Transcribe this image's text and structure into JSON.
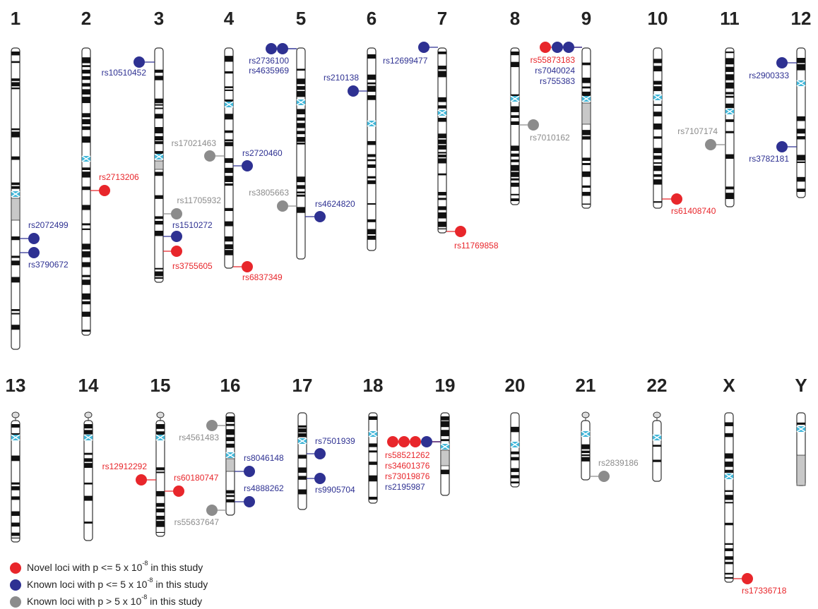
{
  "chromosomes": [
    {
      "label": "1"
    },
    {
      "label": "2"
    },
    {
      "label": "3"
    },
    {
      "label": "4"
    },
    {
      "label": "5"
    },
    {
      "label": "6"
    },
    {
      "label": "7"
    },
    {
      "label": "8"
    },
    {
      "label": "9"
    },
    {
      "label": "10"
    },
    {
      "label": "11"
    },
    {
      "label": "12"
    },
    {
      "label": "13"
    },
    {
      "label": "14"
    },
    {
      "label": "15"
    },
    {
      "label": "16"
    },
    {
      "label": "17"
    },
    {
      "label": "18"
    },
    {
      "label": "19"
    },
    {
      "label": "20"
    },
    {
      "label": "21"
    },
    {
      "label": "22"
    },
    {
      "label": "X"
    },
    {
      "label": "Y"
    }
  ],
  "snps": [
    {
      "id": "rs2072499",
      "color": "#2e3192"
    },
    {
      "id": "rs3790672",
      "color": "#2e3192"
    },
    {
      "id": "rs2713206",
      "color": "#e8262b"
    },
    {
      "id": "rs10510452",
      "color": "#2e3192"
    },
    {
      "id": "rs11705932",
      "color": "#8c8c8c"
    },
    {
      "id": "rs1510272",
      "color": "#2e3192"
    },
    {
      "id": "rs3755605",
      "color": "#e8262b"
    },
    {
      "id": "rs17021463",
      "color": "#8c8c8c"
    },
    {
      "id": "rs2720460",
      "color": "#2e3192"
    },
    {
      "id": "rs6837349",
      "color": "#e8262b"
    },
    {
      "id": "rs2736100",
      "color": "#2e3192"
    },
    {
      "id": "rs4635969",
      "color": "#2e3192"
    },
    {
      "id": "rs3805663",
      "color": "#8c8c8c"
    },
    {
      "id": "rs4624820",
      "color": "#2e3192"
    },
    {
      "id": "rs210138",
      "color": "#2e3192"
    },
    {
      "id": "rs12699477",
      "color": "#2e3192"
    },
    {
      "id": "rs11769858",
      "color": "#e8262b"
    },
    {
      "id": "rs7010162",
      "color": "#8c8c8c"
    },
    {
      "id": "rs55873183",
      "color": "#e8262b"
    },
    {
      "id": "rs7040024",
      "color": "#2e3192"
    },
    {
      "id": "rs755383",
      "color": "#2e3192"
    },
    {
      "id": "rs61408740",
      "color": "#e8262b"
    },
    {
      "id": "rs7107174",
      "color": "#8c8c8c"
    },
    {
      "id": "rs2900333",
      "color": "#2e3192"
    },
    {
      "id": "rs3782181",
      "color": "#2e3192"
    },
    {
      "id": "rs12912292",
      "color": "#e8262b"
    },
    {
      "id": "rs60180747",
      "color": "#e8262b"
    },
    {
      "id": "rs4561483",
      "color": "#8c8c8c"
    },
    {
      "id": "rs8046148",
      "color": "#2e3192"
    },
    {
      "id": "rs4888262",
      "color": "#2e3192"
    },
    {
      "id": "rs55637647",
      "color": "#8c8c8c"
    },
    {
      "id": "rs7501939",
      "color": "#2e3192"
    },
    {
      "id": "rs9905704",
      "color": "#2e3192"
    },
    {
      "id": "rs58521262",
      "color": "#e8262b"
    },
    {
      "id": "rs34601376",
      "color": "#e8262b"
    },
    {
      "id": "rs73019876",
      "color": "#e8262b"
    },
    {
      "id": "rs2195987",
      "color": "#2e3192"
    },
    {
      "id": "rs2839186",
      "color": "#8c8c8c"
    },
    {
      "id": "rs17336718",
      "color": "#e8262b"
    }
  ],
  "legend": [
    {
      "text": "Novel loci with p <= 5 x 10",
      "exponent": "-8",
      "suffix": " in this study",
      "color": "#e8262b"
    },
    {
      "text": "Known loci with p <= 5 x 10",
      "exponent": "-8",
      "suffix": " in this study",
      "color": "#2e3192"
    },
    {
      "text": "Known loci with p > 5 x 10",
      "exponent": "-8",
      "suffix": " in this study",
      "color": "#8c8c8c"
    }
  ]
}
